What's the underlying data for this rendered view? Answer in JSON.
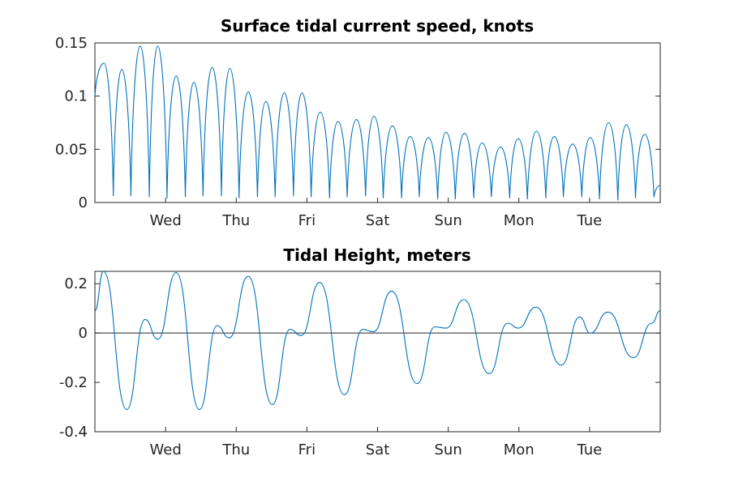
{
  "chart_data": [
    {
      "type": "line",
      "title": "Surface tidal current speed, knots",
      "xlabel": "",
      "ylabel": "",
      "x_tick_labels": [
        "Wed",
        "Thu",
        "Fri",
        "Sat",
        "Sun",
        "Mon",
        "Tue"
      ],
      "y_tick_labels": [
        "0",
        "0.05",
        "0.1",
        "0.15"
      ],
      "ylim": [
        0,
        0.15
      ],
      "xlim_days": [
        0,
        8
      ],
      "grid": false,
      "series": [
        {
          "color": "#0072BD",
          "x_days": [
            0.0,
            0.13,
            0.26,
            0.38,
            0.51,
            0.64,
            0.77,
            0.89,
            1.02,
            1.15,
            1.28,
            1.4,
            1.53,
            1.66,
            1.79,
            1.91,
            2.04,
            2.17,
            2.3,
            2.42,
            2.55,
            2.68,
            2.81,
            2.93,
            3.06,
            3.19,
            3.32,
            3.44,
            3.57,
            3.7,
            3.83,
            3.95,
            4.08,
            4.21,
            4.34,
            4.46,
            4.59,
            4.72,
            4.85,
            4.97,
            5.1,
            5.23,
            5.36,
            5.48,
            5.61,
            5.74,
            5.87,
            5.99,
            6.12,
            6.25,
            6.38,
            6.5,
            6.63,
            6.76,
            6.89,
            7.01,
            7.14,
            7.27,
            7.4,
            7.52,
            7.65,
            7.78,
            7.91,
            8.0
          ],
          "values": [
            0.1,
            0.131,
            0.006,
            0.125,
            0.006,
            0.147,
            0.005,
            0.147,
            0.004,
            0.119,
            0.005,
            0.113,
            0.006,
            0.127,
            0.006,
            0.126,
            0.004,
            0.104,
            0.005,
            0.095,
            0.005,
            0.103,
            0.006,
            0.103,
            0.005,
            0.085,
            0.004,
            0.076,
            0.005,
            0.078,
            0.006,
            0.081,
            0.004,
            0.072,
            0.004,
            0.062,
            0.005,
            0.061,
            0.003,
            0.066,
            0.003,
            0.065,
            0.004,
            0.056,
            0.005,
            0.052,
            0.004,
            0.06,
            0.003,
            0.067,
            0.004,
            0.062,
            0.005,
            0.055,
            0.005,
            0.061,
            0.003,
            0.075,
            0.002,
            0.073,
            0.004,
            0.064,
            0.005,
            0.016
          ]
        }
      ]
    },
    {
      "type": "line",
      "title": "Tidal Height, meters",
      "xlabel": "",
      "ylabel": "",
      "x_tick_labels": [
        "Wed",
        "Thu",
        "Fri",
        "Sat",
        "Sun",
        "Mon",
        "Tue"
      ],
      "y_tick_labels": [
        "-0.4",
        "-0.2",
        "0",
        "0.2"
      ],
      "ylim": [
        -0.4,
        0.25
      ],
      "xlim_days": [
        0,
        8
      ],
      "grid": false,
      "zero_line": true,
      "series": [
        {
          "color": "#0072BD",
          "x_days": [
            0.0,
            0.12,
            0.45,
            0.71,
            0.89,
            1.15,
            1.48,
            1.73,
            1.9,
            2.17,
            2.51,
            2.76,
            2.92,
            3.18,
            3.53,
            3.79,
            3.94,
            4.2,
            4.56,
            4.81,
            4.97,
            5.22,
            5.58,
            5.84,
            5.99,
            6.24,
            6.6,
            6.86,
            7.01,
            7.26,
            7.62,
            7.88,
            8.0
          ],
          "values": [
            0.09,
            0.25,
            -0.31,
            0.055,
            -0.025,
            0.245,
            -0.31,
            0.03,
            -0.02,
            0.23,
            -0.29,
            0.015,
            -0.01,
            0.205,
            -0.25,
            0.015,
            0.005,
            0.17,
            -0.205,
            0.025,
            0.02,
            0.135,
            -0.165,
            0.04,
            0.02,
            0.105,
            -0.13,
            0.065,
            0.0,
            0.085,
            -0.1,
            0.04,
            0.09
          ]
        }
      ]
    }
  ]
}
